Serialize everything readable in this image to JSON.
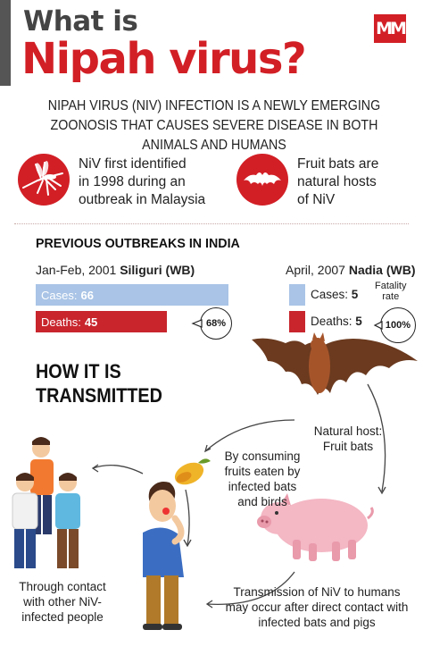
{
  "header": {
    "title_line1": "What is",
    "title_line2": "Nipah virus?",
    "logo_text": "MM"
  },
  "intro": {
    "text": "NIPAH VIRUS (NIV) INFECTION IS A NEWLY EMERGING ZOONOSIS THAT CAUSES SEVERE DISEASE IN BOTH ANIMALS AND HUMANS"
  },
  "facts": [
    {
      "icon": "mosquito-icon",
      "line1": "NiV first identified",
      "line2": "in 1998 during an",
      "line3": "outbreak in Malaysia"
    },
    {
      "icon": "bat-icon",
      "line1": "Fruit bats are",
      "line2": "natural hosts",
      "line3": "of NiV"
    }
  ],
  "outbreaks": {
    "title": "PREVIOUS OUTBREAKS IN INDIA",
    "siliguri": {
      "date": "Jan-Feb, 2001",
      "place": "Siliguri (WB)",
      "cases_label": "Cases:",
      "cases": 66,
      "deaths_label": "Deaths:",
      "deaths": 45,
      "fatality": "68%"
    },
    "nadia": {
      "date": "April, 2007",
      "place": "Nadia (WB)",
      "cases_label": "Cases:",
      "cases": 5,
      "deaths_label": "Deaths:",
      "deaths": 5,
      "fatality_label_line1": "Fatality",
      "fatality_label_line2": "rate",
      "fatality": "100%"
    }
  },
  "chart_data": {
    "type": "bar",
    "categories": [
      "Siliguri (WB)",
      "Nadia (WB)"
    ],
    "series": [
      {
        "name": "Cases",
        "values": [
          66,
          5
        ]
      },
      {
        "name": "Deaths",
        "values": [
          45,
          5
        ]
      }
    ],
    "colors": {
      "cases": "#a9c4e6",
      "deaths": "#c8252d"
    }
  },
  "transmission": {
    "title_line1": "HOW IT IS",
    "title_line2": "TRANSMITTED",
    "natural_host_label": "Natural host:",
    "natural_host_value": "Fruit bats",
    "consuming_line1": "By consuming",
    "consuming_line2": "fruits eaten by",
    "consuming_line3": "infected bats",
    "consuming_line4": "and birds",
    "contact_line1": "Through contact",
    "contact_line2": "with other NiV-",
    "contact_line3": "infected people",
    "direct_line1": "Transmission of NiV to humans",
    "direct_line2": "may occur after direct contact with",
    "direct_line3": "infected bats and pigs"
  },
  "colors": {
    "accent_red": "#d21f26",
    "cases_blue": "#a9c4e6",
    "deaths_red": "#c8252d"
  }
}
